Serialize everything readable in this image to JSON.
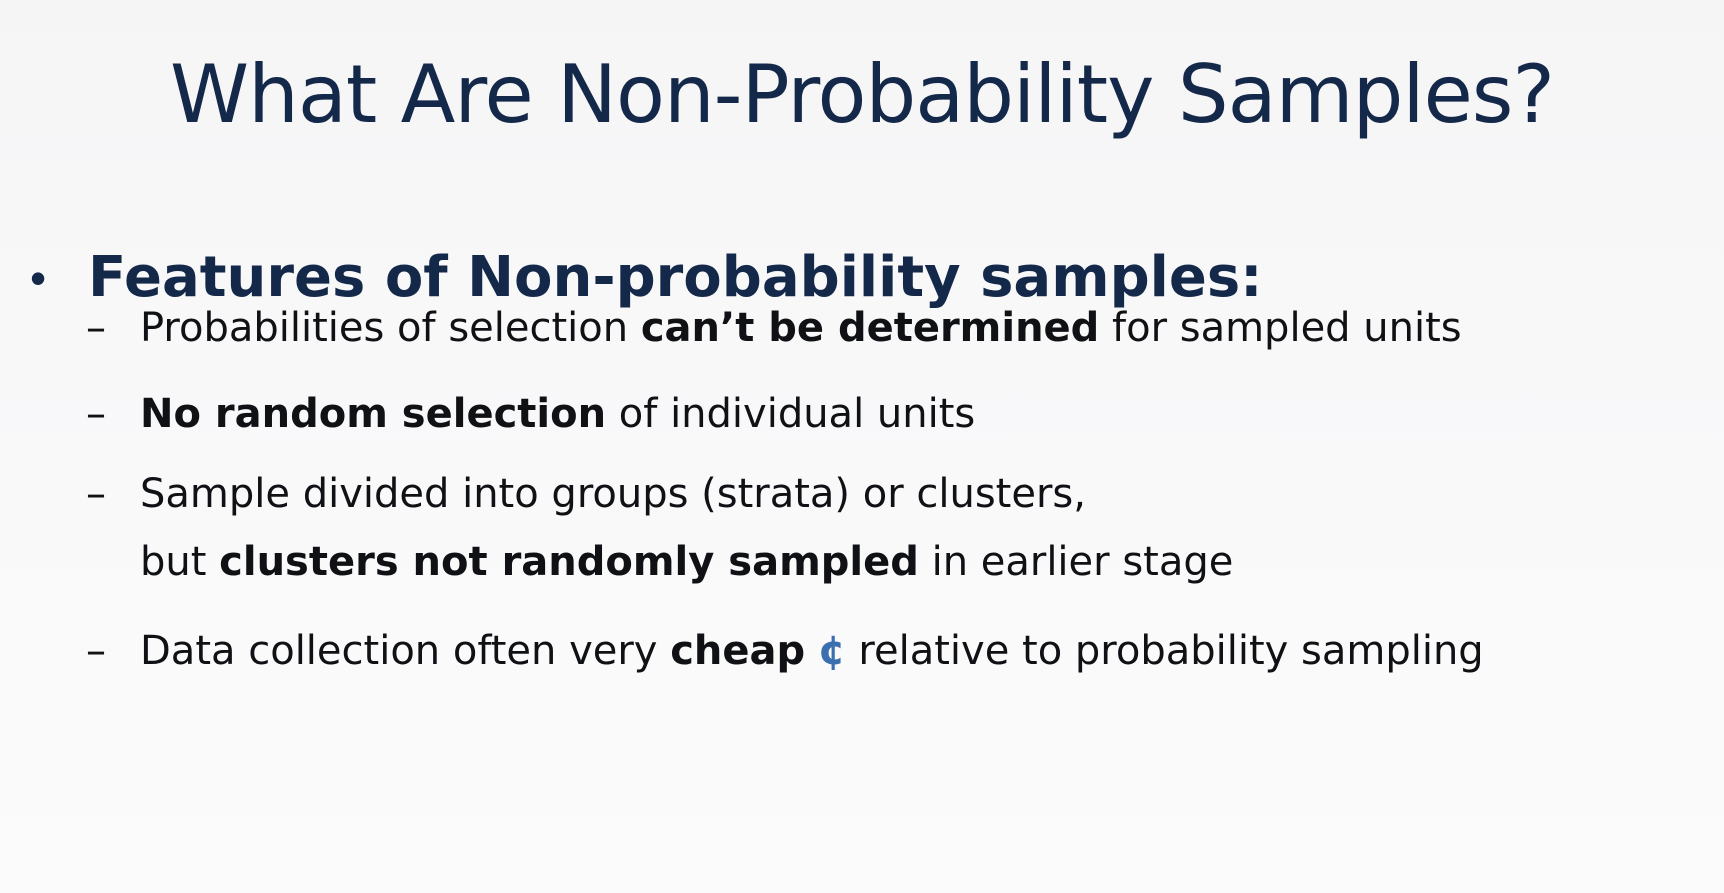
{
  "slide": {
    "title": "What Are Non-Probability Samples?",
    "bullet": {
      "marker": "•",
      "text": "Features of Non-probability samples:"
    },
    "dash": "–",
    "items": [
      {
        "pre": "Probabilities of selection ",
        "bold": "can’t be determined",
        "post": " for sampled units"
      },
      {
        "pre": "",
        "bold": "No random selection",
        "post": " of individual units"
      },
      {
        "line1": "Sample divided into groups (strata) or clusters,",
        "line2_pre": "but ",
        "line2_bold": "clusters not randomly sampled",
        "line2_post": " in earlier stage"
      },
      {
        "pre": "Data collection often very ",
        "bold": "cheap",
        "symbol": "¢",
        "post": " relative to probability sampling"
      }
    ],
    "colors": {
      "title": "#14284a",
      "body": "#0f1115",
      "cent_symbol": "#3a6fb0",
      "background": "#f7f7f8"
    }
  }
}
